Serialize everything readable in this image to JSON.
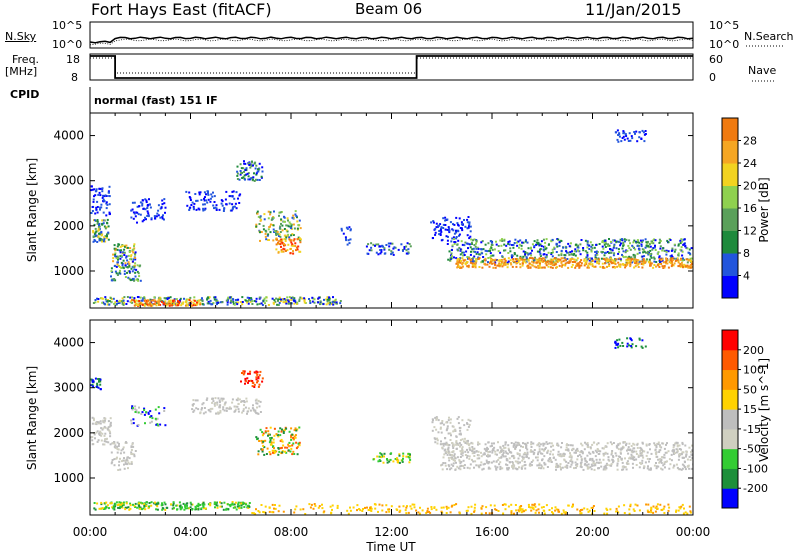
{
  "header": {
    "title": "Fort Hays East (fitACF)",
    "beam": "Beam 06",
    "date": "11/Jan/2015"
  },
  "left_labels": {
    "nsky": "N.Sky",
    "freq": "Freq.",
    "freq_unit": "[MHz]",
    "cpid": "CPID"
  },
  "right_labels": {
    "nsearch": "N.Search",
    "nave": "Nave"
  },
  "cpid_text": "normal (fast) 151 IF",
  "colors": {
    "power": [
      "#0000ff",
      "#2255dd",
      "#1e8a3c",
      "#5aa05a",
      "#8fd14f",
      "#f2d320",
      "#f5a623",
      "#f07a10",
      "#ff2b00"
    ],
    "velocity": [
      "#ff0000",
      "#ff5a00",
      "#ff9900",
      "#ffd200",
      "#bebebe",
      "#cfcfc0",
      "#33cc33",
      "#1d8f3a",
      "#0000ff"
    ],
    "frame": "#000000"
  },
  "chart_data": [
    {
      "type": "line",
      "name": "noise-panel",
      "ylabel_left": "N.Sky",
      "ylabel_right": "N.Search",
      "left_ticks": [
        "10^5",
        "10^0"
      ],
      "right_ticks": [
        "10^5",
        "10^0"
      ],
      "ylim": [
        0,
        100000
      ],
      "x": [
        0,
        24
      ],
      "note": ""
    },
    {
      "type": "line",
      "name": "freq-nave-panel",
      "left_ticks": [
        "18",
        "8"
      ],
      "right_ticks": [
        "60",
        "0"
      ],
      "series": [
        {
          "name": "Freq.",
          "x": [
            0,
            1,
            1,
            13,
            13,
            24
          ],
          "values": [
            18,
            18,
            8,
            8,
            18,
            18
          ]
        },
        {
          "name": "Nave",
          "x": [
            0,
            1,
            1,
            13,
            13,
            24
          ],
          "values": [
            60,
            60,
            8,
            8,
            60,
            60
          ]
        }
      ]
    },
    {
      "type": "heatmap",
      "name": "power-panel",
      "ylabel": "Slant Range [km]",
      "yticks": [
        "4000",
        "3000",
        "2000",
        "1000"
      ],
      "ylim": [
        180,
        4500
      ],
      "colorbar_label": "Power [dB]",
      "colorbar_ticks": [
        "28",
        "24",
        "20",
        "16",
        "12",
        "8",
        "4"
      ],
      "clim": [
        0,
        30
      ]
    },
    {
      "type": "heatmap",
      "name": "velocity-panel",
      "ylabel": "Slant Range [km]",
      "yticks": [
        "4000",
        "3000",
        "2000",
        "1000"
      ],
      "ylim": [
        180,
        4500
      ],
      "colorbar_label": "Velocity [m s^-1]",
      "colorbar_ticks": [
        "200",
        "100",
        "50",
        "15",
        "-15",
        "-50",
        "-100",
        "-200"
      ],
      "xlabel": "Time UT",
      "xticks": [
        "00:00",
        "04:00",
        "08:00",
        "12:00",
        "16:00",
        "20:00",
        "00:00"
      ],
      "xlim": [
        0,
        24
      ]
    }
  ]
}
